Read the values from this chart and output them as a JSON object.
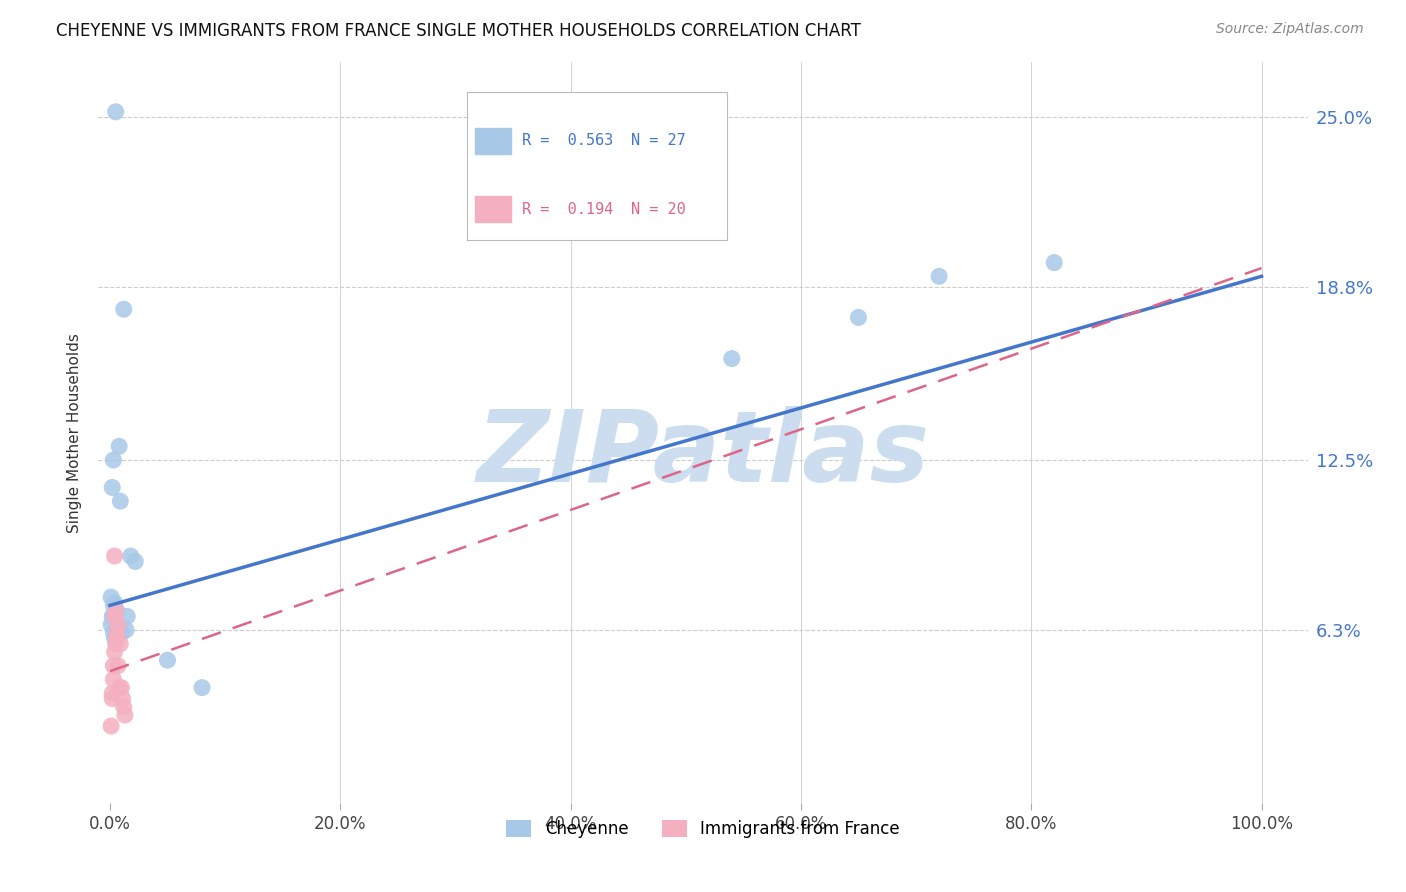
{
  "title": "CHEYENNE VS IMMIGRANTS FROM FRANCE SINGLE MOTHER HOUSEHOLDS CORRELATION CHART",
  "source": "Source: ZipAtlas.com",
  "ylabel": "Single Mother Households",
  "ytick_labels": [
    "6.3%",
    "12.5%",
    "18.8%",
    "25.0%"
  ],
  "ytick_values": [
    0.063,
    0.125,
    0.188,
    0.25
  ],
  "xtick_labels": [
    "0.0%",
    "20.0%",
    "40.0%",
    "60.0%",
    "80.0%",
    "100.0%"
  ],
  "xtick_values": [
    0.0,
    0.2,
    0.4,
    0.6,
    0.8,
    1.0
  ],
  "cheyenne_R": 0.563,
  "cheyenne_N": 27,
  "france_R": 0.194,
  "france_N": 20,
  "cheyenne_color": "#a8c8e8",
  "france_color": "#f4b0c0",
  "trend_blue": "#4477cc",
  "trend_pink": "#dd6688",
  "watermark": "ZIPatlas",
  "watermark_color": "#ccddf0",
  "background_color": "#ffffff",
  "cheyenne_x": [
    0.005,
    0.012,
    0.008,
    0.003,
    0.002,
    0.001,
    0.004,
    0.006,
    0.003,
    0.009,
    0.015,
    0.007,
    0.014,
    0.01,
    0.018,
    0.022,
    0.05,
    0.08,
    0.003,
    0.002,
    0.001,
    0.003,
    0.004,
    0.54,
    0.65,
    0.72,
    0.82
  ],
  "cheyenne_y": [
    0.252,
    0.18,
    0.13,
    0.125,
    0.115,
    0.075,
    0.073,
    0.07,
    0.068,
    0.11,
    0.068,
    0.065,
    0.063,
    0.062,
    0.09,
    0.088,
    0.052,
    0.042,
    0.072,
    0.068,
    0.065,
    0.062,
    0.06,
    0.162,
    0.177,
    0.192,
    0.197
  ],
  "france_x": [
    0.001,
    0.002,
    0.003,
    0.004,
    0.005,
    0.006,
    0.007,
    0.008,
    0.002,
    0.003,
    0.004,
    0.005,
    0.006,
    0.007,
    0.009,
    0.01,
    0.011,
    0.012,
    0.013,
    0.004
  ],
  "france_y": [
    0.028,
    0.04,
    0.05,
    0.055,
    0.058,
    0.062,
    0.065,
    0.042,
    0.038,
    0.045,
    0.068,
    0.07,
    0.06,
    0.05,
    0.058,
    0.042,
    0.038,
    0.035,
    0.032,
    0.09
  ],
  "ylim": [
    0.0,
    0.27
  ],
  "xlim": [
    -0.01,
    1.04
  ],
  "grid_color": "#cccccc",
  "cheyenne_trend_x0": 0.0,
  "cheyenne_trend_y0": 0.072,
  "cheyenne_trend_x1": 1.0,
  "cheyenne_trend_y1": 0.192,
  "france_trend_x0": 0.0,
  "france_trend_y0": 0.048,
  "france_trend_x1": 1.0,
  "france_trend_y1": 0.195
}
